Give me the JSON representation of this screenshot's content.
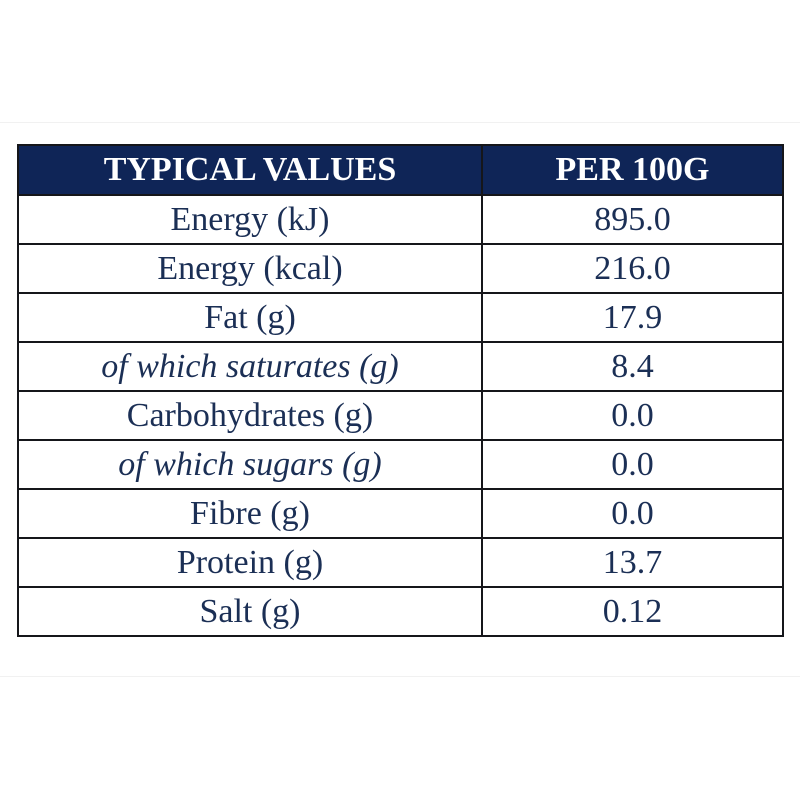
{
  "table": {
    "headers": [
      "TYPICAL VALUES",
      "PER 100G"
    ],
    "rows": [
      {
        "label": "Energy (kJ)",
        "value": "895.0",
        "sub": false
      },
      {
        "label": "Energy (kcal)",
        "value": "216.0",
        "sub": false
      },
      {
        "label": "Fat (g)",
        "value": "17.9",
        "sub": false
      },
      {
        "label": "of which saturates (g)",
        "value": "8.4",
        "sub": true
      },
      {
        "label": "Carbohydrates (g)",
        "value": "0.0",
        "sub": false
      },
      {
        "label": "of which sugars (g)",
        "value": "0.0",
        "sub": true
      },
      {
        "label": "Fibre (g)",
        "value": "0.0",
        "sub": false
      },
      {
        "label": "Protein (g)",
        "value": "13.7",
        "sub": false
      },
      {
        "label": "Salt (g)",
        "value": "0.12",
        "sub": false
      }
    ]
  },
  "colors": {
    "header_background": "#0f2557",
    "header_text": "#ffffff",
    "body_text": "#1b2f55",
    "border": "#15161a"
  }
}
